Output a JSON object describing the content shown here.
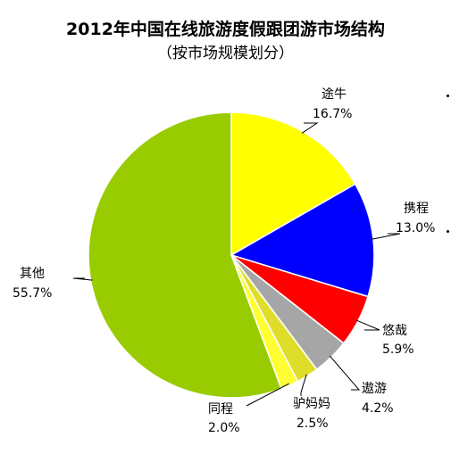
{
  "chart_data": {
    "type": "pie",
    "title": "2012年中国在线旅游度假跟团游市场结构",
    "subtitle": "（按市场规模划分）",
    "slices": [
      {
        "name": "途牛",
        "value": 16.7,
        "label": "16.7%",
        "color": "#ffff00"
      },
      {
        "name": "携程",
        "value": 13.0,
        "label": "13.0%",
        "color": "#0000ff"
      },
      {
        "name": "悠哉",
        "value": 5.9,
        "label": "5.9%",
        "color": "#ff0000"
      },
      {
        "name": "遨游",
        "value": 4.2,
        "label": "4.2%",
        "color": "#a6a6a6"
      },
      {
        "name": "驴妈妈",
        "value": 2.5,
        "label": "2.5%",
        "color": "#dede2a"
      },
      {
        "name": "同程",
        "value": 2.0,
        "label": "2.0%",
        "color": "#ffff33"
      },
      {
        "name": "其他",
        "value": 55.7,
        "label": "55.7%",
        "color": "#99cc00"
      }
    ],
    "start_angle": "12 o'clock",
    "direction": "clockwise",
    "legend": "none"
  }
}
